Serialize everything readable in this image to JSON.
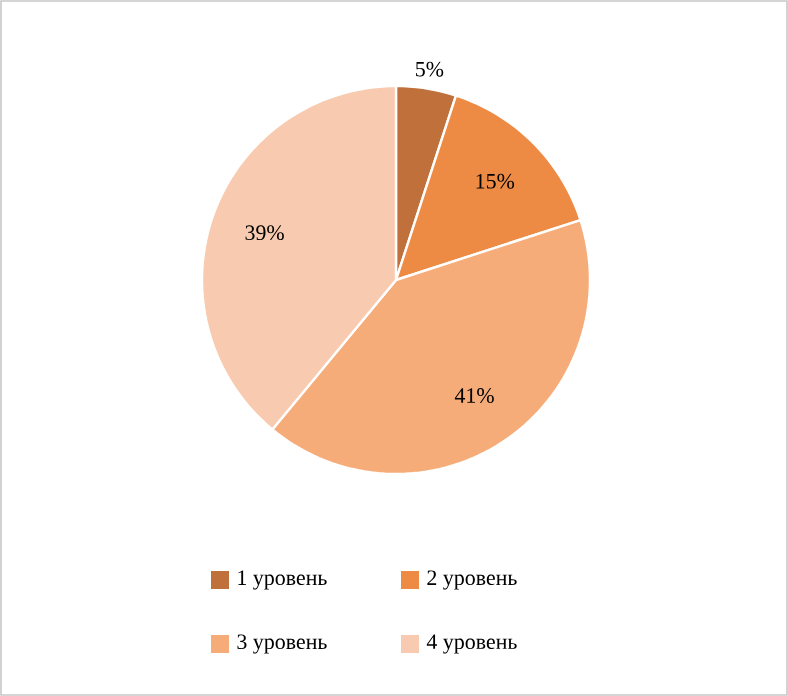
{
  "chart_data": {
    "type": "pie",
    "categories": [
      "1 уровень",
      "2 уровень",
      "3 уровень",
      "4 уровень"
    ],
    "values": [
      5,
      15,
      41,
      39
    ],
    "value_labels": [
      "5%",
      "15%",
      "41%",
      "39%"
    ],
    "colors": [
      "#c0703a",
      "#ed8b45",
      "#f5ac78",
      "#f8cbb0"
    ],
    "legend": "bottom"
  }
}
